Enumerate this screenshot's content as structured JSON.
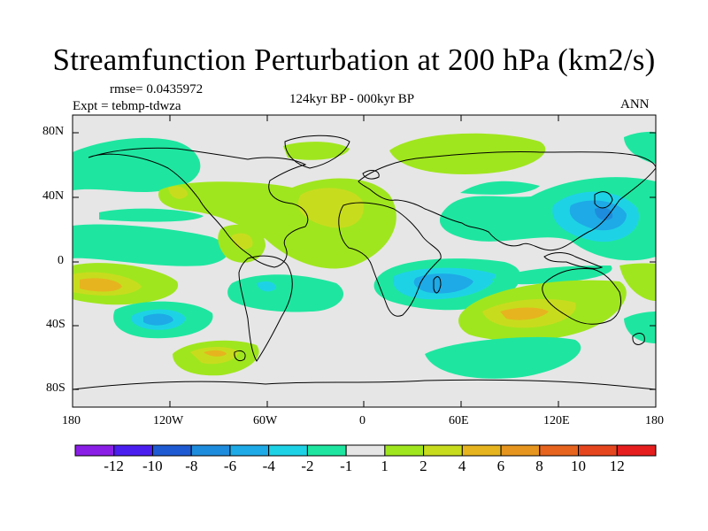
{
  "title": "Streamfunction Perturbation at 200 hPa (km2/s)",
  "rmse_text": "rmse= 0.0435972",
  "expt_text": "Expt = tebmp-tdwza",
  "period_text": "124kyr BP - 000kyr BP",
  "season_text": "ANN",
  "lat_ticks": [
    "80N",
    "40N",
    "0",
    "40S",
    "80S"
  ],
  "lon_ticks": [
    "180",
    "120W",
    "60W",
    "0",
    "60E",
    "120E",
    "180"
  ],
  "colorbar": {
    "labels": [
      "-12",
      "-10",
      "-8",
      "-6",
      "-4",
      "-2",
      "-1",
      "1",
      "2",
      "4",
      "6",
      "8",
      "10",
      "12"
    ],
    "colors": [
      "#8a1ee6",
      "#4b1ef0",
      "#1e5ad2",
      "#1e8cdc",
      "#1eaae6",
      "#1ed2e6",
      "#1ee6a0",
      "#e6e6e6",
      "#a0e61e",
      "#c8dc1e",
      "#e6b41e",
      "#e6961e",
      "#e6641e",
      "#e6461e",
      "#e61e1e"
    ]
  }
}
